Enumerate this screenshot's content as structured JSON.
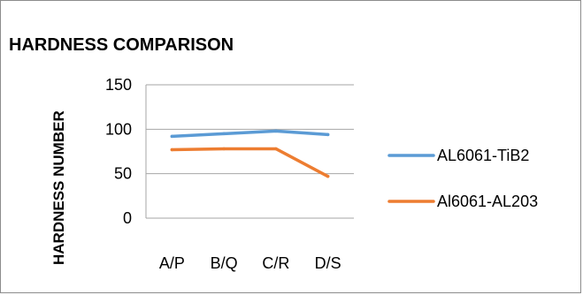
{
  "chart_data": {
    "type": "line",
    "title": "HARDNESS COMPARISON",
    "xlabel": "",
    "ylabel": "HARDNESS NUMBER",
    "categories": [
      "A/P",
      "B/Q",
      "C/R",
      "D/S"
    ],
    "ylim": [
      0,
      150
    ],
    "yticks": [
      0,
      50,
      100,
      150
    ],
    "grid": "horizontal",
    "legend": "right",
    "series": [
      {
        "name": "AL6061-TiB2",
        "color": "#5b9bd5",
        "values": [
          92,
          95,
          98,
          94
        ]
      },
      {
        "name": "Al6061-AL203",
        "color": "#ed7d31",
        "values": [
          77,
          78,
          78,
          47
        ]
      }
    ]
  }
}
